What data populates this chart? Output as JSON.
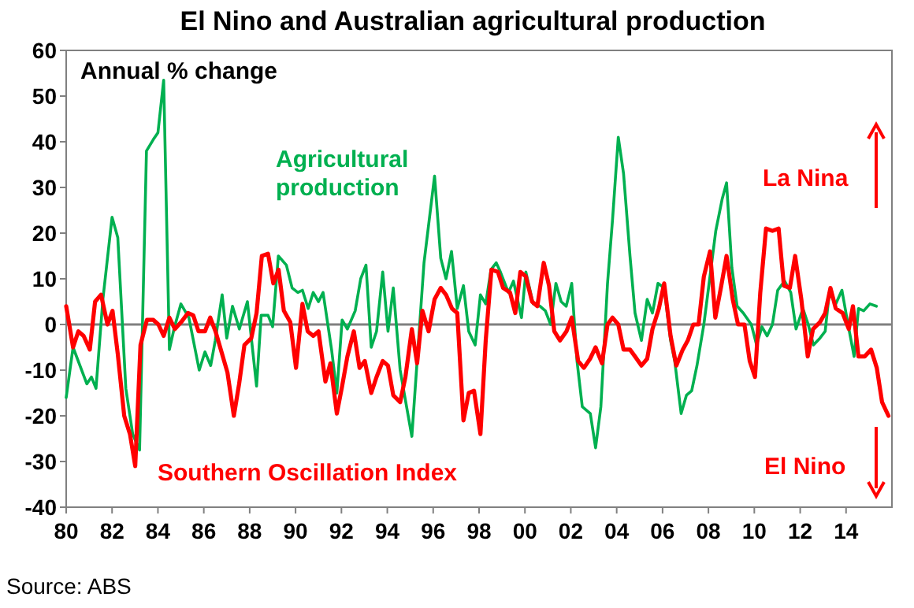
{
  "chart_data": {
    "type": "line",
    "title": "El Nino and Australian agricultural production",
    "annotations": [
      "Annual % change",
      "La Nina",
      "El Nino",
      "Source: ABS"
    ],
    "xlim": [
      1980,
      2016
    ],
    "xticks": [
      {
        "value": 1980,
        "label": "80"
      },
      {
        "value": 1982,
        "label": "82"
      },
      {
        "value": 1984,
        "label": "84"
      },
      {
        "value": 1986,
        "label": "86"
      },
      {
        "value": 1988,
        "label": "88"
      },
      {
        "value": 1990,
        "label": "90"
      },
      {
        "value": 1992,
        "label": "92"
      },
      {
        "value": 1994,
        "label": "94"
      },
      {
        "value": 1996,
        "label": "96"
      },
      {
        "value": 1998,
        "label": "98"
      },
      {
        "value": 2000,
        "label": "00"
      },
      {
        "value": 2002,
        "label": "02"
      },
      {
        "value": 2004,
        "label": "04"
      },
      {
        "value": 2006,
        "label": "06"
      },
      {
        "value": 2008,
        "label": "08"
      },
      {
        "value": 2010,
        "label": "10"
      },
      {
        "value": 2012,
        "label": "12"
      },
      {
        "value": 2014,
        "label": "14"
      }
    ],
    "ylim": [
      -40,
      60
    ],
    "yticks": [
      -40,
      -30,
      -20,
      -10,
      0,
      10,
      20,
      30,
      40,
      50,
      60
    ],
    "grid": false,
    "legend": false,
    "ref_lines": [
      {
        "axis": "y",
        "value": 0,
        "color": "#808080"
      }
    ],
    "series": [
      {
        "name": "Agricultural production",
        "color": "#00b050",
        "x": [
          1980.0,
          1980.3,
          1980.9,
          1981.1,
          1981.3,
          1981.6,
          1982.0,
          1982.25,
          1982.6,
          1982.9,
          1983.2,
          1983.5,
          1983.8,
          1984.0,
          1984.25,
          1984.5,
          1984.7,
          1985.0,
          1985.35,
          1985.8,
          1986.05,
          1986.3,
          1986.5,
          1986.8,
          1987.0,
          1987.25,
          1987.55,
          1987.9,
          1988.3,
          1988.5,
          1988.8,
          1989.0,
          1989.25,
          1989.6,
          1989.85,
          1990.1,
          1990.3,
          1990.55,
          1990.77,
          1991.0,
          1991.2,
          1991.57,
          1991.8,
          1992.03,
          1992.26,
          1992.6,
          1992.84,
          1993.07,
          1993.3,
          1993.53,
          1993.8,
          1994.03,
          1994.26,
          1994.56,
          1994.84,
          1995.07,
          1995.3,
          1995.6,
          1996.06,
          1996.33,
          1996.56,
          1996.8,
          1997.05,
          1997.32,
          1997.55,
          1997.83,
          1998.06,
          1998.29,
          1998.52,
          1998.75,
          1998.93,
          1999.28,
          1999.5,
          1999.85,
          2000.04,
          2000.36,
          2000.66,
          2000.89,
          2001.12,
          2001.35,
          2001.58,
          2001.8,
          2002.04,
          2002.27,
          2002.5,
          2002.85,
          2003.08,
          2003.31,
          2003.6,
          2003.82,
          2004.07,
          2004.3,
          2004.58,
          2004.8,
          2005.08,
          2005.33,
          2005.56,
          2005.8,
          2006.07,
          2006.35,
          2006.53,
          2006.81,
          2007.04,
          2007.27,
          2007.5,
          2007.8,
          2008.03,
          2008.32,
          2008.6,
          2008.79,
          2009.02,
          2009.25,
          2009.52,
          2009.87,
          2010.1,
          2010.33,
          2010.56,
          2010.79,
          2011.02,
          2011.32,
          2011.59,
          2011.82,
          2012.12,
          2012.35,
          2012.58,
          2012.86,
          2013.09,
          2013.27,
          2013.55,
          2013.82,
          2014.05,
          2014.35,
          2014.54,
          2014.77,
          2015.04,
          2015.32
        ],
        "values": [
          -16,
          -5,
          -13,
          -11.5,
          -14,
          5.5,
          23.5,
          19,
          -14,
          -24,
          -27.5,
          38,
          40.5,
          42,
          53.5,
          -5.5,
          -1,
          4.5,
          1.5,
          -10,
          -6,
          -9,
          -3.5,
          6.5,
          -3,
          4,
          -1,
          5,
          -13.5,
          2,
          2,
          -0.5,
          15,
          13,
          8,
          7,
          7.5,
          3.5,
          7,
          5,
          7,
          -5.5,
          -15,
          1,
          -1,
          3,
          10,
          13,
          -5,
          -1.5,
          11.5,
          -1.5,
          8,
          -10,
          -18,
          -24.5,
          -8,
          13.5,
          32.5,
          14.5,
          10,
          16,
          3.5,
          8.5,
          -1.5,
          -4.5,
          6.5,
          4.5,
          12,
          13.5,
          11.5,
          7,
          9.5,
          1.5,
          11.5,
          4.5,
          4,
          3,
          0,
          9,
          5,
          4,
          9,
          -8,
          -18,
          -19.5,
          -27,
          -18,
          9,
          23,
          41,
          33,
          15,
          2.5,
          -3.5,
          5.5,
          2.5,
          9,
          8,
          -3.5,
          -8,
          -19.5,
          -15.5,
          -14.5,
          -9,
          0,
          9,
          20.5,
          27.5,
          31,
          12.5,
          4,
          2.5,
          0,
          -4.5,
          -0.5,
          -2.5,
          0,
          7.5,
          9.5,
          7,
          -1,
          3.5,
          0,
          -4.5,
          -3,
          -1.5,
          7,
          4.5,
          7.5,
          1,
          -7,
          3.5,
          3,
          4.5,
          4
        ]
      },
      {
        "name": "Southern Oscillation Index",
        "color": "#ff0000",
        "x": [
          1980.0,
          1980.3,
          1980.53,
          1980.76,
          1981.03,
          1981.26,
          1981.52,
          1981.8,
          1982.02,
          1982.25,
          1982.53,
          1982.78,
          1983.01,
          1983.24,
          1983.52,
          1983.8,
          1984.02,
          1984.25,
          1984.5,
          1984.74,
          1985.01,
          1985.31,
          1985.54,
          1985.77,
          1986.05,
          1986.28,
          1986.51,
          1986.8,
          1987.03,
          1987.31,
          1987.54,
          1987.77,
          1988.07,
          1988.3,
          1988.53,
          1988.8,
          1989.03,
          1989.26,
          1989.49,
          1989.77,
          1990.02,
          1990.3,
          1990.53,
          1990.77,
          1991.0,
          1991.3,
          1991.52,
          1991.8,
          1992.03,
          1992.26,
          1992.54,
          1992.79,
          1993.02,
          1993.3,
          1993.53,
          1993.8,
          1994.03,
          1994.26,
          1994.56,
          1994.79,
          1995.07,
          1995.3,
          1995.53,
          1995.8,
          1996.06,
          1996.33,
          1996.56,
          1996.82,
          1997.05,
          1997.32,
          1997.55,
          1997.78,
          1998.06,
          1998.29,
          1998.54,
          1998.82,
          1999.05,
          1999.35,
          1999.58,
          1999.8,
          2000.04,
          2000.31,
          2000.54,
          2000.82,
          2001.05,
          2001.28,
          2001.53,
          2001.81,
          2002.04,
          2002.32,
          2002.57,
          2002.84,
          2003.08,
          2003.36,
          2003.6,
          2003.82,
          2004.07,
          2004.3,
          2004.58,
          2004.8,
          2005.08,
          2005.33,
          2005.56,
          2005.84,
          2006.07,
          2006.35,
          2006.6,
          2006.88,
          2007.1,
          2007.34,
          2007.57,
          2007.8,
          2008.07,
          2008.3,
          2008.56,
          2008.79,
          2009.06,
          2009.29,
          2009.57,
          2009.8,
          2010.03,
          2010.26,
          2010.51,
          2010.79,
          2011.06,
          2011.29,
          2011.55,
          2011.78,
          2012.05,
          2012.33,
          2012.56,
          2012.86,
          2013.09,
          2013.32,
          2013.55,
          2013.85,
          2014.12,
          2014.3,
          2014.54,
          2014.81,
          2015.09,
          2015.34,
          2015.57,
          2015.85
        ],
        "values": [
          4,
          -5,
          -1.5,
          -2.5,
          -5.5,
          5,
          6.5,
          0,
          3,
          -6.5,
          -20,
          -24,
          -31,
          -4.5,
          1,
          1,
          0,
          -2.5,
          1.5,
          -1,
          0.5,
          2.5,
          2,
          -1.5,
          -1.5,
          1.5,
          -1.5,
          -6.5,
          -10.5,
          -20,
          -13,
          -4.5,
          -3,
          2.5,
          15,
          15.5,
          9,
          12,
          3,
          0.5,
          -9.5,
          4.5,
          -1.5,
          -2.5,
          -1.5,
          -12.5,
          -8.5,
          -19.5,
          -13.5,
          -7,
          -1.5,
          -9.5,
          -8,
          -15,
          -11.5,
          -8,
          -9,
          -15.5,
          -17,
          -11.5,
          -1,
          -8.5,
          3,
          -1.5,
          5.5,
          8,
          6.5,
          3.5,
          2.5,
          -21,
          -15,
          -14.5,
          -24,
          -3.5,
          12,
          11.5,
          8,
          7,
          2.5,
          11.5,
          10.5,
          5,
          4,
          13.5,
          8.5,
          -1.5,
          -3.5,
          -1.5,
          1.5,
          -8,
          -9.5,
          -7.5,
          -5,
          -8.5,
          0,
          1.5,
          0,
          -5.5,
          -5.5,
          -7,
          -9,
          -7.5,
          -1,
          3.5,
          9,
          -2.5,
          -9,
          -5.5,
          -3.5,
          0,
          0,
          10.5,
          16,
          1.5,
          8.5,
          15,
          5.5,
          0,
          0,
          -8,
          -11.5,
          7,
          21,
          20.5,
          21,
          8.5,
          8,
          15,
          5.5,
          -7,
          -1,
          0.5,
          2.5,
          8,
          3.5,
          2.5,
          -1,
          4,
          -7,
          -7,
          -5.5,
          -9.5,
          -17,
          -20
        ]
      }
    ]
  }
}
